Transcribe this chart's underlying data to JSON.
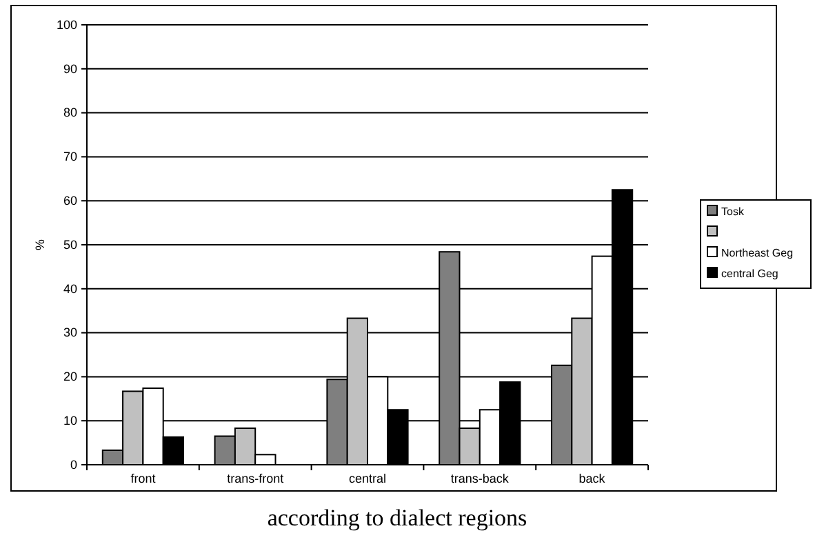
{
  "chart_data": {
    "type": "bar",
    "title": "according to dialect regions",
    "ylabel": "%",
    "categories": [
      "front",
      "trans-front",
      "central",
      "trans-back",
      "back"
    ],
    "series": [
      {
        "name": "Tosk",
        "color": "#7f7f7f",
        "values": [
          3.3,
          6.5,
          19.4,
          48.4,
          22.6
        ]
      },
      {
        "color": "#c0c0c0",
        "values": [
          16.7,
          8.3,
          33.3,
          8.3,
          33.3
        ]
      },
      {
        "name": "Northeast Geg",
        "color": "#ffffff",
        "values": [
          17.4,
          2.3,
          20,
          12.5,
          47.4
        ]
      },
      {
        "name": "central Geg",
        "color": "#000000",
        "values": [
          6.3,
          0,
          12.5,
          18.8,
          62.5
        ]
      }
    ],
    "ylim": [
      0,
      100
    ],
    "yticks": [
      0,
      10,
      20,
      30,
      40,
      50,
      60,
      70,
      80,
      90,
      100
    ],
    "grid": "y",
    "legend": "right"
  }
}
